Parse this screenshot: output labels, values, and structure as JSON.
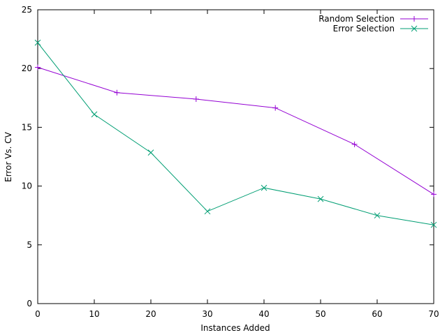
{
  "chart_data": {
    "type": "line",
    "title": "",
    "xlabel": "Instances Added",
    "ylabel": "Error Vs. CV",
    "xlim": [
      0,
      70
    ],
    "ylim": [
      0,
      25
    ],
    "xticks": [
      0,
      10,
      20,
      30,
      40,
      50,
      60,
      70
    ],
    "yticks": [
      0,
      5,
      10,
      15,
      20,
      25
    ],
    "grid": false,
    "legend_position": "top-right",
    "series": [
      {
        "name": "Random Selection",
        "color": "#9400d3",
        "marker": "plus",
        "x": [
          0,
          14,
          28,
          42,
          56,
          70
        ],
        "y": [
          20.1,
          17.95,
          17.4,
          16.65,
          13.55,
          9.3
        ]
      },
      {
        "name": "Error Selection",
        "color": "#009e73",
        "marker": "cross",
        "x": [
          0,
          10,
          20,
          30,
          40,
          50,
          60,
          70
        ],
        "y": [
          22.2,
          16.1,
          12.85,
          7.85,
          9.85,
          8.9,
          7.5,
          6.7
        ]
      }
    ]
  }
}
